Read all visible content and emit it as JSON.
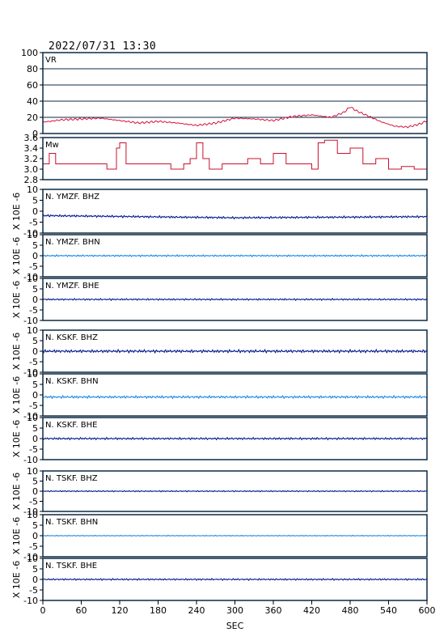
{
  "header": {
    "timestamp": "2022/07/31  13:30"
  },
  "colors": {
    "frame": "#0d2a45",
    "vr": "#d4143c",
    "mw": "#c8102e",
    "dark": "#001a8c",
    "light": "#1e88e5"
  },
  "chart_data": {
    "type": "line",
    "xlabel": "SEC",
    "xlim": [
      0,
      600
    ],
    "xticks": [
      "0",
      "60",
      "120",
      "180",
      "240",
      "300",
      "360",
      "420",
      "480",
      "540",
      "600"
    ],
    "panels": [
      {
        "id": "vr",
        "label": "VR",
        "ylim": [
          0,
          100
        ],
        "yticks": [
          "100",
          "80",
          "60",
          "40",
          "20",
          "0"
        ],
        "grid": true,
        "color_key": "vr",
        "series": {
          "x": [
            0,
            30,
            60,
            90,
            120,
            150,
            180,
            210,
            240,
            270,
            300,
            330,
            360,
            390,
            420,
            450,
            470,
            480,
            490,
            510,
            530,
            550,
            570,
            590,
            600
          ],
          "y": [
            14,
            17,
            18,
            19,
            16,
            13,
            15,
            13,
            10,
            13,
            19,
            18,
            16,
            21,
            23,
            20,
            26,
            33,
            28,
            21,
            14,
            9,
            8,
            12,
            16
          ]
        }
      },
      {
        "id": "mw",
        "label": "Mw",
        "ylim": [
          2.8,
          3.6
        ],
        "yticks": [
          "3.6",
          "3.4",
          "3.2",
          "3.0",
          "2.8"
        ],
        "grid": false,
        "color_key": "mw",
        "series": {
          "x": [
            0,
            10,
            20,
            40,
            60,
            80,
            100,
            110,
            115,
            120,
            130,
            140,
            150,
            160,
            180,
            200,
            220,
            230,
            240,
            250,
            260,
            280,
            300,
            320,
            340,
            360,
            380,
            400,
            410,
            420,
            430,
            440,
            460,
            480,
            500,
            520,
            540,
            560,
            580,
            600
          ],
          "y": [
            3.1,
            3.3,
            3.1,
            3.1,
            3.1,
            3.1,
            3.0,
            3.0,
            3.4,
            3.5,
            3.1,
            3.1,
            3.1,
            3.1,
            3.1,
            3.0,
            3.1,
            3.2,
            3.5,
            3.2,
            3.0,
            3.1,
            3.1,
            3.2,
            3.1,
            3.3,
            3.1,
            3.1,
            3.1,
            3.0,
            3.5,
            3.55,
            3.3,
            3.4,
            3.1,
            3.2,
            3.0,
            3.05,
            3.0,
            2.95
          ]
        }
      },
      {
        "id": "ymzf-bhz",
        "label": "N. YMZF. BHZ",
        "ylim": [
          -10,
          10
        ],
        "yticks": [
          "10",
          "5",
          "0",
          "-5",
          "-10"
        ],
        "ylabel": "X 10E -6",
        "color_key": "dark",
        "series": {
          "x": [
            0,
            300,
            600
          ],
          "y": [
            -2.0,
            -3.0,
            -2.5
          ],
          "amp": 0.5
        }
      },
      {
        "id": "ymzf-bhn",
        "label": "N. YMZF. BHN",
        "ylim": [
          -10,
          10
        ],
        "yticks": [
          "10",
          "5",
          "0",
          "-5",
          "-10"
        ],
        "ylabel": "X 10E -6",
        "color_key": "light",
        "series": {
          "x": [
            0,
            300,
            600
          ],
          "y": [
            0,
            0,
            0
          ],
          "amp": 0.4
        }
      },
      {
        "id": "ymzf-bhe",
        "label": "N. YMZF. BHE",
        "ylim": [
          -10,
          10
        ],
        "yticks": [
          "10",
          "5",
          "0",
          "-5",
          "-10"
        ],
        "ylabel": "X 10E -6",
        "color_key": "dark",
        "series": {
          "x": [
            0,
            300,
            600
          ],
          "y": [
            0,
            0,
            0
          ],
          "amp": 0.4
        }
      },
      {
        "id": "kskf-bhz",
        "label": "N. KSKF. BHZ",
        "ylim": [
          -10,
          10
        ],
        "yticks": [
          "10",
          "5",
          "0",
          "-5",
          "-10"
        ],
        "ylabel": "X 10E -6",
        "color_key": "dark",
        "series": {
          "x": [
            0,
            300,
            600
          ],
          "y": [
            0,
            0,
            0
          ],
          "amp": 0.7
        }
      },
      {
        "id": "kskf-bhn",
        "label": "N. KSKF. BHN",
        "ylim": [
          -10,
          10
        ],
        "yticks": [
          "10",
          "5",
          "0",
          "-5",
          "-10"
        ],
        "ylabel": "X 10E -6",
        "color_key": "light",
        "series": {
          "x": [
            0,
            300,
            600
          ],
          "y": [
            -1,
            -1,
            -1
          ],
          "amp": 0.6
        }
      },
      {
        "id": "kskf-bhe",
        "label": "N. KSKF. BHE",
        "ylim": [
          -10,
          10
        ],
        "yticks": [
          "10",
          "5",
          "0",
          "-5",
          "-10"
        ],
        "ylabel": "X 10E -6",
        "color_key": "dark",
        "series": {
          "x": [
            0,
            300,
            600
          ],
          "y": [
            0,
            0,
            0
          ],
          "amp": 0.5
        }
      },
      {
        "id": "tskf-bhz",
        "label": "N. TSKF. BHZ",
        "ylim": [
          -10,
          10
        ],
        "yticks": [
          "10",
          "5",
          "0",
          "-5",
          "-10"
        ],
        "ylabel": "X 10E -6",
        "color_key": "dark",
        "series": {
          "x": [
            0,
            300,
            600
          ],
          "y": [
            0,
            0,
            0
          ],
          "amp": 0.3
        }
      },
      {
        "id": "tskf-bhn",
        "label": "N. TSKF. BHN",
        "ylim": [
          -10,
          10
        ],
        "yticks": [
          "10",
          "5",
          "0",
          "-5",
          "-10"
        ],
        "ylabel": "X 10E -6",
        "color_key": "light",
        "series": {
          "x": [
            0,
            300,
            600
          ],
          "y": [
            0,
            0,
            0
          ],
          "amp": 0.2
        }
      },
      {
        "id": "tskf-bhe",
        "label": "N. TSKF. BHE",
        "ylim": [
          -10,
          10
        ],
        "yticks": [
          "10",
          "5",
          "0",
          "-5",
          "-10"
        ],
        "ylabel": "X 10E -6",
        "color_key": "dark",
        "series": {
          "x": [
            0,
            300,
            600
          ],
          "y": [
            0,
            0,
            0
          ],
          "amp": 0.4
        }
      }
    ]
  }
}
